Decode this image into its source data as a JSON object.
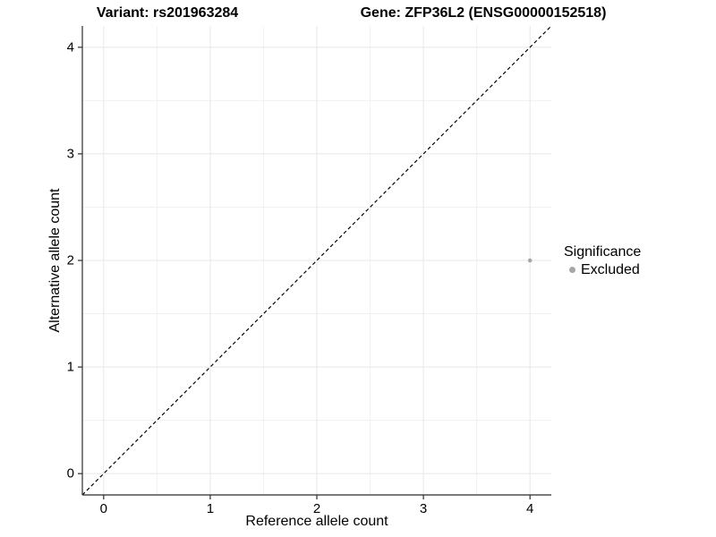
{
  "titles": {
    "variant": "Variant: rs201963284",
    "gene": "Gene: ZFP36L2 (ENSG00000152518)"
  },
  "axes": {
    "x_label": "Reference allele count",
    "y_label": "Alternative allele count",
    "x_tick_labels": [
      "0",
      "1",
      "2",
      "3",
      "4"
    ],
    "y_tick_labels": [
      "0",
      "1",
      "2",
      "3",
      "4"
    ]
  },
  "legend": {
    "title": "Significance",
    "items": [
      {
        "label": "Excluded",
        "color": "#a6a6a6"
      }
    ]
  },
  "colors": {
    "point": "#a6a6a6",
    "grid_major": "#e7e7e7",
    "grid_minor": "#f1f1f1",
    "axis": "#2b2b2b",
    "identity_line": "#000000",
    "background": "#ffffff"
  },
  "chart_data": {
    "type": "scatter",
    "title": "Variant: rs201963284 | Gene: ZFP36L2 (ENSG00000152518)",
    "xlabel": "Reference allele count",
    "ylabel": "Alternative allele count",
    "xlim": [
      -0.2,
      4.2
    ],
    "ylim": [
      -0.2,
      4.2
    ],
    "x_ticks": [
      0,
      1,
      2,
      3,
      4
    ],
    "y_ticks": [
      0,
      1,
      2,
      3,
      4
    ],
    "x_minor_ticks": [
      0.5,
      1.5,
      2.5,
      3.5
    ],
    "y_minor_ticks": [
      0.5,
      1.5,
      2.5,
      3.5
    ],
    "grid": true,
    "identity_line": {
      "style": "dashed",
      "slope": 1,
      "intercept": 0
    },
    "series": [
      {
        "name": "Excluded",
        "color": "#a6a6a6",
        "point_radius": 2.3,
        "points": [
          {
            "x": 4,
            "y": 2
          }
        ]
      }
    ],
    "legend_title": "Significance",
    "legend_position": "right"
  }
}
